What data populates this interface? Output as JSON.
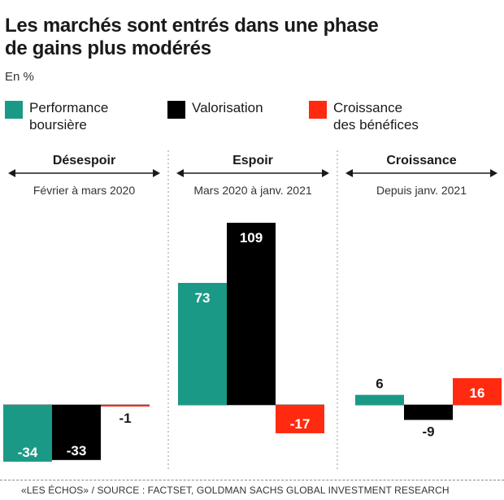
{
  "title_line1": "Les marchés sont entrés dans une phase",
  "title_line2": "de gains plus modérés",
  "unit": "En %",
  "legend": [
    {
      "label_line1": "Performance",
      "label_line2": "boursière",
      "color": "#1a9a86"
    },
    {
      "label_line1": "Valorisation",
      "label_line2": "",
      "color": "#000000"
    },
    {
      "label_line1": "Croissance",
      "label_line2": "des bénéfices",
      "color": "#ff2a0f"
    }
  ],
  "source": "«LES ÉCHOS» / SOURCE : FACTSET, GOLDMAN SACHS GLOBAL INVESTMENT RESEARCH",
  "chart_data": {
    "type": "bar",
    "title": "Les marchés sont entrés dans une phase de gains plus modérés",
    "ylabel": "En %",
    "ylim": [
      -34,
      109
    ],
    "grid": false,
    "legend_position": "top",
    "series_names": [
      "Performance boursière",
      "Valorisation",
      "Croissance des bénéfices"
    ],
    "colors": [
      "#1a9a86",
      "#000000",
      "#ff2a0f"
    ],
    "groups": [
      {
        "phase": "Désespoir",
        "period": "Février à mars 2020",
        "values": [
          -34,
          -33,
          -1
        ]
      },
      {
        "phase": "Espoir",
        "period": "Mars 2020 à janv. 2021",
        "values": [
          73,
          109,
          -17
        ]
      },
      {
        "phase": "Croissance",
        "period": "Depuis janv. 2021",
        "values": [
          6,
          -9,
          16
        ]
      }
    ]
  }
}
